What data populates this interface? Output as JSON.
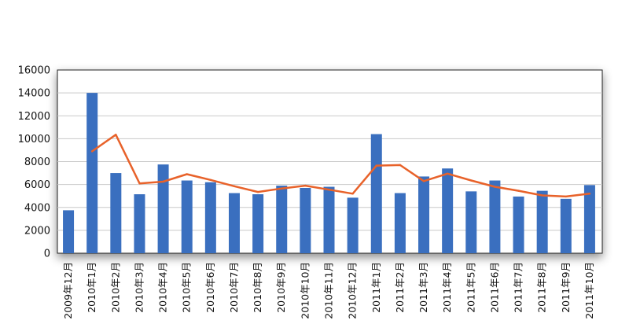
{
  "chart_data": {
    "type": "bar",
    "title": "",
    "xlabel": "",
    "ylabel": "",
    "ylim": [
      0,
      16000
    ],
    "yticks": [
      0,
      2000,
      4000,
      6000,
      8000,
      10000,
      12000,
      14000,
      16000
    ],
    "grid": true,
    "legend": "none",
    "categories": [
      "2009年12月",
      "2010年1月",
      "2010年2月",
      "2010年3月",
      "2010年4月",
      "2010年5月",
      "2010年6月",
      "2010年7月",
      "2010年8月",
      "2010年9月",
      "2010年10月",
      "2010年11月",
      "2010年12月",
      "2011年1月",
      "2011年2月",
      "2011年3月",
      "2011年4月",
      "2011年5月",
      "2011年6月",
      "2011年7月",
      "2011年8月",
      "2011年9月",
      "2011年10月"
    ],
    "series": [
      {
        "type": "bar",
        "color": "#3a6fbf",
        "values": [
          3750,
          14000,
          7000,
          5150,
          7750,
          6350,
          6200,
          5250,
          5150,
          5900,
          5700,
          5800,
          4850,
          10400,
          5250,
          6700,
          7400,
          5400,
          6350,
          4950,
          5450,
          4750,
          5950
        ]
      },
      {
        "type": "line",
        "color": "#e8622a",
        "values": [
          null,
          8900,
          10350,
          6100,
          6250,
          6900,
          6400,
          5850,
          5350,
          5650,
          5900,
          5550,
          5200,
          7650,
          7700,
          6300,
          6950,
          6350,
          5800,
          5450,
          5050,
          4950,
          5200
        ]
      }
    ]
  }
}
